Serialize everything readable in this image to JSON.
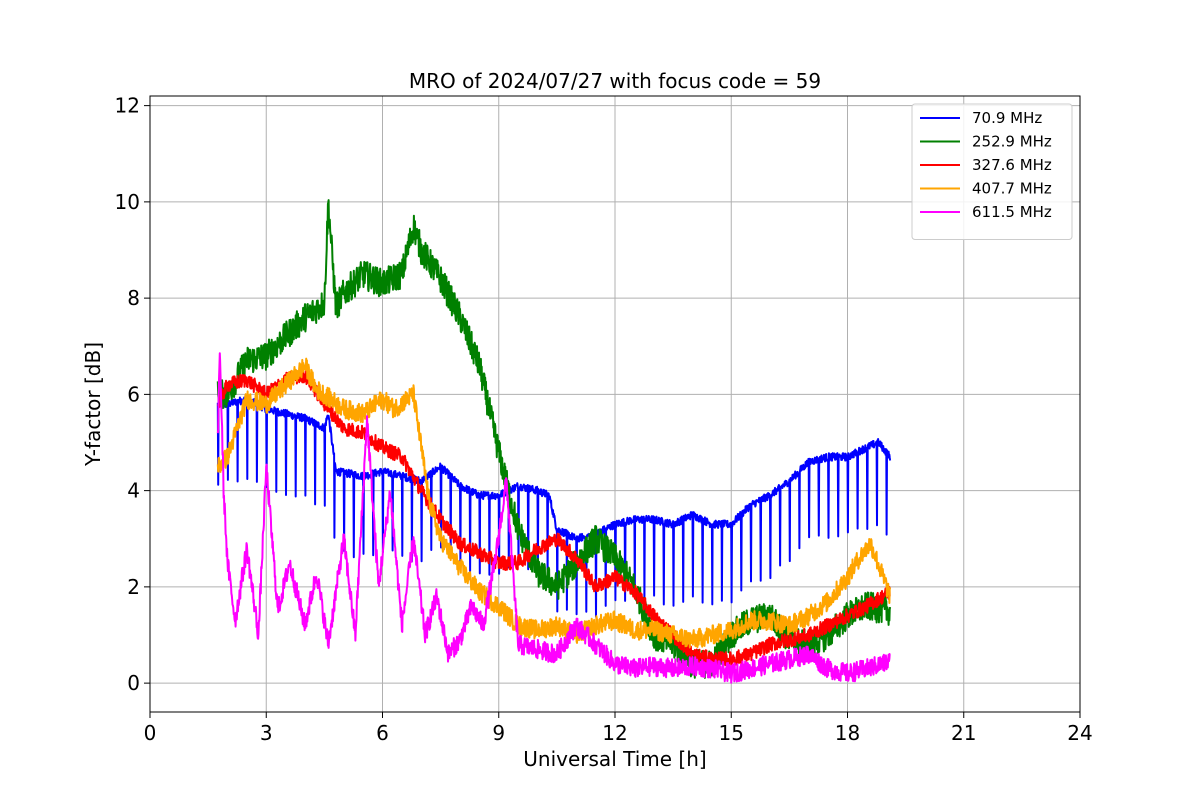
{
  "chart_data": {
    "type": "line",
    "title": "MRO of 2024/07/27 with focus code = 59",
    "xlabel": "Universal Time [h]",
    "ylabel": "Y-factor [dB]",
    "xlim": [
      0,
      24
    ],
    "ylim": [
      -0.6,
      12.2
    ],
    "xticks": [
      0,
      3,
      6,
      9,
      12,
      15,
      18,
      21,
      24
    ],
    "yticks": [
      0,
      2,
      4,
      6,
      8,
      10,
      12
    ],
    "grid": true,
    "legend_position": "top-right",
    "series": [
      {
        "name": " 70.9 MHz",
        "color": "#0000ff",
        "x": [
          1.75,
          2,
          2.5,
          3,
          3.5,
          4,
          4.5,
          4.6,
          4.8,
          5.5,
          6,
          6.5,
          7,
          7.5,
          8,
          8.5,
          9,
          9.5,
          10,
          10.3,
          10.5,
          11,
          11.5,
          12,
          12.5,
          13,
          13.5,
          14,
          14.5,
          15,
          15.5,
          16,
          16.5,
          17,
          17.5,
          18,
          18.5,
          18.8,
          19.1
        ],
        "y": [
          5.8,
          5.8,
          5.9,
          5.7,
          5.6,
          5.5,
          5.3,
          5.6,
          4.4,
          4.3,
          4.4,
          4.3,
          4.2,
          4.5,
          4.1,
          3.9,
          3.9,
          4.1,
          4.0,
          3.9,
          3.2,
          3.0,
          3.1,
          3.3,
          3.4,
          3.4,
          3.3,
          3.5,
          3.3,
          3.3,
          3.7,
          3.9,
          4.2,
          4.6,
          4.7,
          4.7,
          4.9,
          5.0,
          4.7
        ],
        "dip_interval_h": 0.25,
        "dip_depth": 2.8,
        "noise": 0.08
      },
      {
        "name": "252.9 MHz",
        "color": "#008000",
        "x": [
          1.75,
          2,
          2.5,
          3,
          3.5,
          4,
          4.5,
          4.6,
          4.8,
          5,
          5.5,
          6,
          6.5,
          6.8,
          7,
          7.5,
          8,
          8.5,
          9,
          9.5,
          10,
          10.5,
          11,
          11.5,
          12,
          12.5,
          13,
          13.5,
          14,
          14.5,
          15,
          15.5,
          16,
          16.5,
          17,
          17.5,
          18,
          18.5,
          19.1
        ],
        "y": [
          6.0,
          6.0,
          6.7,
          6.8,
          7.2,
          7.6,
          7.9,
          10.0,
          7.8,
          8.1,
          8.5,
          8.3,
          8.5,
          9.5,
          9.0,
          8.4,
          7.6,
          6.6,
          4.8,
          3.2,
          2.3,
          2.0,
          2.5,
          3.0,
          2.6,
          2.0,
          1.0,
          0.8,
          0.4,
          0.4,
          1.0,
          1.3,
          1.4,
          0.9,
          0.8,
          1.0,
          1.4,
          1.6,
          1.5
        ],
        "noise": 0.3
      },
      {
        "name": "327.6 MHz",
        "color": "#ff0000",
        "x": [
          1.75,
          2,
          2.5,
          3,
          3.5,
          4,
          4.5,
          5,
          5.5,
          6,
          6.5,
          7,
          7.5,
          8,
          8.5,
          9,
          9.5,
          10,
          10.5,
          11,
          11.5,
          12,
          12.5,
          13,
          13.5,
          14,
          14.5,
          15,
          15.5,
          16,
          16.5,
          17,
          17.5,
          18,
          18.5,
          19.1
        ],
        "y": [
          5.8,
          6.2,
          6.3,
          6.0,
          6.3,
          6.4,
          5.8,
          5.3,
          5.2,
          4.9,
          4.7,
          4.0,
          3.4,
          2.9,
          2.7,
          2.5,
          2.5,
          2.8,
          3.0,
          2.6,
          2.0,
          2.2,
          1.9,
          1.4,
          1.0,
          0.6,
          0.5,
          0.5,
          0.6,
          0.8,
          0.9,
          1.0,
          1.2,
          1.4,
          1.6,
          1.9
        ],
        "noise": 0.15
      },
      {
        "name": "407.7 MHz",
        "color": "#ffa500",
        "x": [
          1.75,
          2,
          2.5,
          3,
          3.5,
          4,
          4.3,
          4.5,
          5,
          5.5,
          6,
          6.3,
          6.8,
          7.2,
          7.5,
          8,
          8.5,
          9,
          9.5,
          10,
          10.5,
          11,
          11.5,
          12,
          12.5,
          13,
          13.5,
          14,
          14.5,
          15,
          15.5,
          16,
          16.5,
          17,
          17.5,
          18,
          18.3,
          18.6,
          19.1
        ],
        "y": [
          4.5,
          4.7,
          5.9,
          5.8,
          6.2,
          6.6,
          6.1,
          6.0,
          5.7,
          5.6,
          5.9,
          5.7,
          6.0,
          3.8,
          3.0,
          2.4,
          1.9,
          1.6,
          1.2,
          1.1,
          1.2,
          1.0,
          1.2,
          1.3,
          1.1,
          1.1,
          1.0,
          0.9,
          1.0,
          1.1,
          1.3,
          1.3,
          1.2,
          1.4,
          1.7,
          2.2,
          2.6,
          2.9,
          1.8
        ],
        "noise": 0.2
      },
      {
        "name": "611.5 MHz",
        "color": "#ff00ff",
        "x": [
          1.75,
          1.8,
          1.9,
          2,
          2.2,
          2.5,
          2.8,
          3,
          3.3,
          3.6,
          4,
          4.3,
          4.6,
          5,
          5.3,
          5.6,
          5.9,
          6.2,
          6.5,
          6.8,
          7.1,
          7.4,
          7.7,
          8,
          8.3,
          8.6,
          8.9,
          9.2,
          9.5,
          10,
          10.5,
          11,
          11.5,
          12,
          12.5,
          13,
          13.5,
          14,
          14.5,
          15,
          15.5,
          16,
          16.5,
          17,
          17.5,
          18,
          18.5,
          19.1
        ],
        "y": [
          5.0,
          7.0,
          4.0,
          2.5,
          1.3,
          2.8,
          1.0,
          4.5,
          1.5,
          2.5,
          1.2,
          2.3,
          0.8,
          3.0,
          1.0,
          5.5,
          2.0,
          4.0,
          1.2,
          3.0,
          1.0,
          1.8,
          0.6,
          0.9,
          1.6,
          1.2,
          2.5,
          4.2,
          0.8,
          0.7,
          0.6,
          1.2,
          0.8,
          0.4,
          0.3,
          0.35,
          0.3,
          0.35,
          0.3,
          0.2,
          0.3,
          0.4,
          0.5,
          0.6,
          0.3,
          0.2,
          0.3,
          0.45
        ],
        "noise": 0.2
      }
    ]
  }
}
